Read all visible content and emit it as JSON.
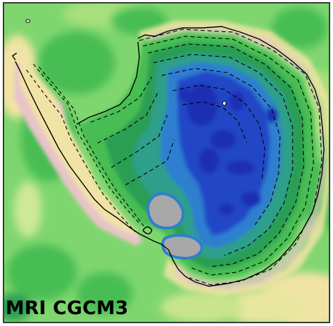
{
  "figure": {
    "label": "MRI CGCM3"
  },
  "colors": {
    "background": "#ffffff",
    "frame_border": "#3a3a3a",
    "ocean_light_green": "#7fd66f",
    "ocean_mid_green": "#46bd53",
    "ocean_dark_green": "#2a9e52",
    "coast_tan": "#f1e3a5",
    "coast_pink": "#e9c4c8",
    "teal": "#2f9f8a",
    "light_blue": "#2f7fd0",
    "mid_blue": "#2246c6",
    "deep_blue": "#1a2fb3",
    "ice_shelf_gray": "#a8a8a8",
    "contour_line": "#000000"
  }
}
